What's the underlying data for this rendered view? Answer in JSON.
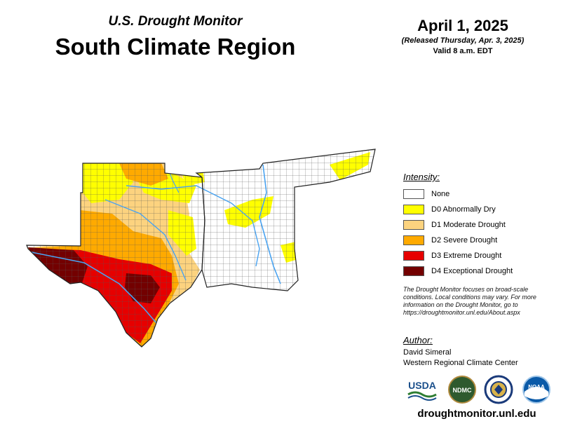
{
  "header": {
    "subtitle": "U.S. Drought Monitor",
    "title": "South Climate Region",
    "date": "April 1, 2025",
    "released": "(Released Thursday, Apr. 3, 2025)",
    "valid": "Valid 8 a.m. EDT"
  },
  "legend": {
    "title": "Intensity:",
    "items": [
      {
        "label": "None",
        "color": "#ffffff"
      },
      {
        "label": "D0 Abnormally Dry",
        "color": "#ffff00"
      },
      {
        "label": "D1 Moderate Drought",
        "color": "#fcd37f"
      },
      {
        "label": "D2 Severe Drought",
        "color": "#ffaa00"
      },
      {
        "label": "D3 Extreme Drought",
        "color": "#e60000"
      },
      {
        "label": "D4 Exceptional Drought",
        "color": "#730000"
      }
    ]
  },
  "note": "The Drought Monitor focuses on broad-scale conditions. Local conditions may vary. For more information on the Drought Monitor, go to https://droughtmonitor.unl.edu/About.aspx",
  "author": {
    "title": "Author:",
    "name": "David Simeral",
    "org": "Western Regional Climate Center"
  },
  "logos": {
    "usda": "USDA",
    "ndmc": "NDMC",
    "noaa": "NOAA"
  },
  "footer": {
    "url": "droughtmonitor.unl.edu"
  },
  "colors": {
    "river": "#4aa3f0",
    "county_line": "#555555"
  }
}
